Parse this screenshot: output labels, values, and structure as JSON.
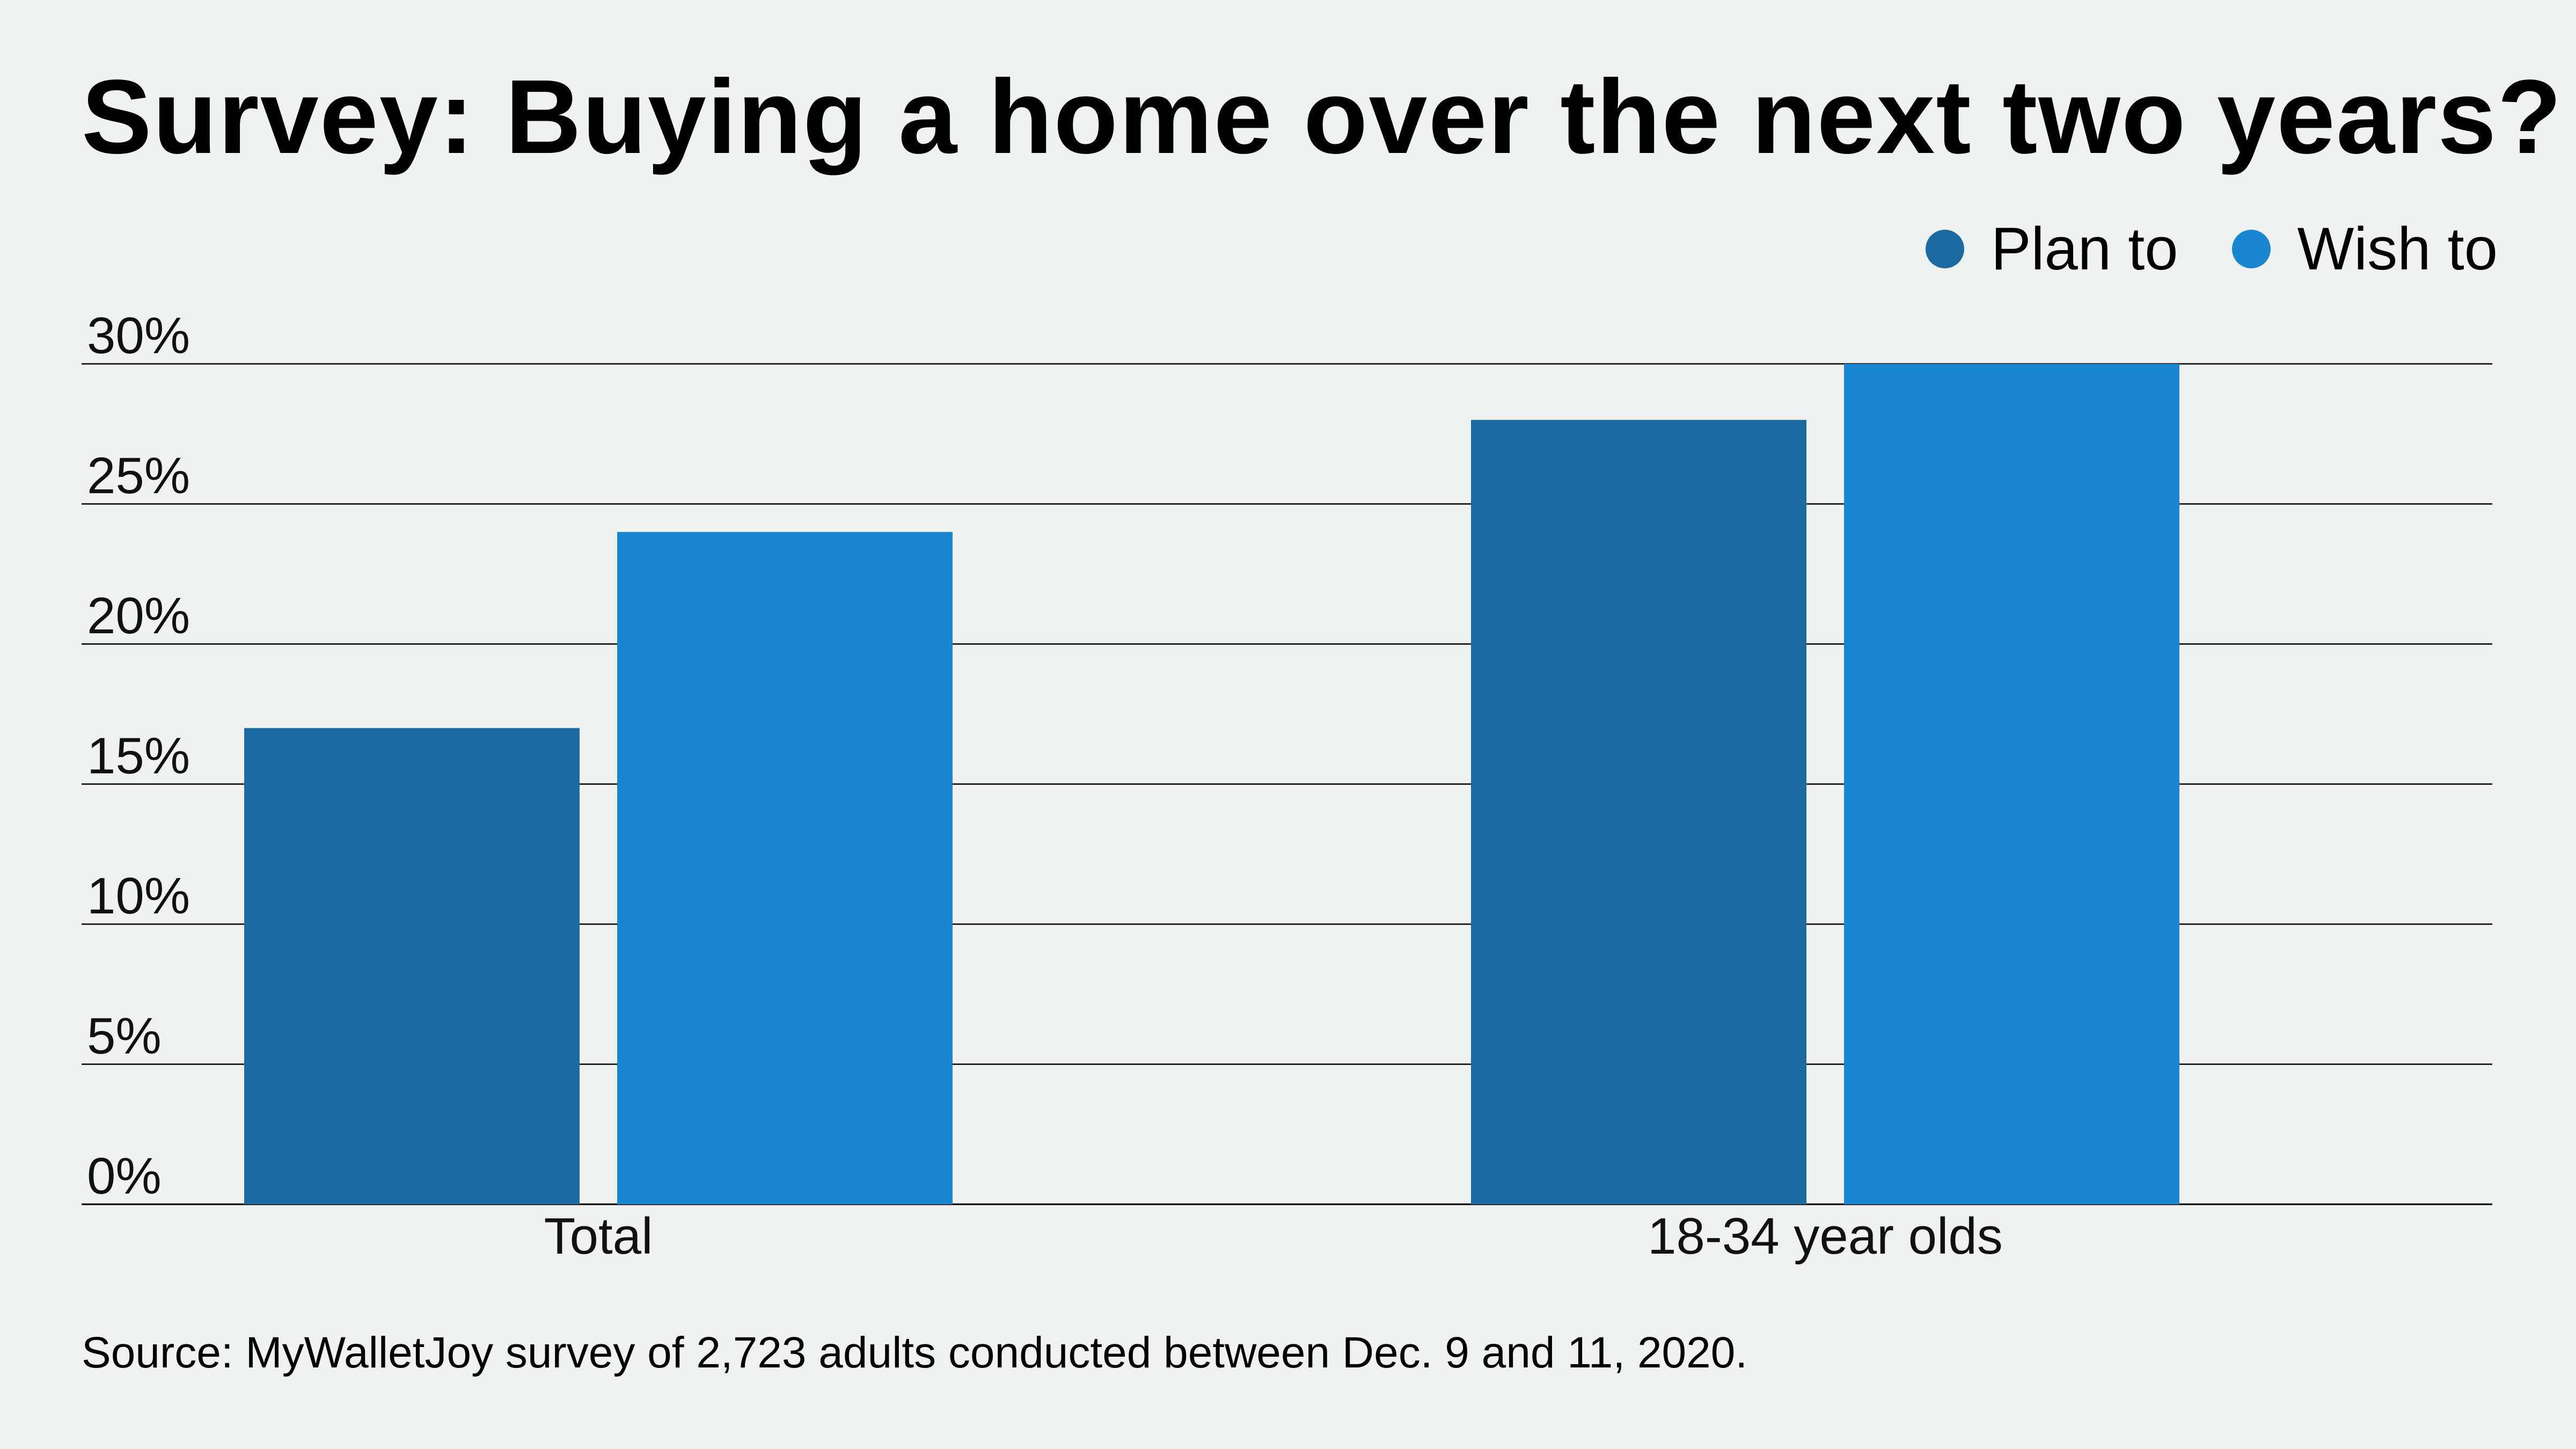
{
  "chart_data": {
    "type": "bar",
    "title": "Survey: Buying a home over the next two years?",
    "categories": [
      "Total",
      "18-34 year olds"
    ],
    "series": [
      {
        "name": "Plan to",
        "values": [
          17,
          28
        ],
        "color": "#1b6aa0"
      },
      {
        "name": "Wish to",
        "values": [
          24,
          30
        ],
        "color": "#1b86d0"
      }
    ],
    "yticks": [
      0,
      5,
      10,
      15,
      20,
      25,
      30
    ],
    "ytick_labels": [
      "0%",
      "5%",
      "10%",
      "15%",
      "20%",
      "25%",
      "30%"
    ],
    "ylim": [
      0,
      30
    ],
    "grid": true,
    "legend_position": "top-right",
    "source": "Source: MyWalletJoy survey of 2,723 adults conducted between Dec. 9 and 11, 2020."
  }
}
